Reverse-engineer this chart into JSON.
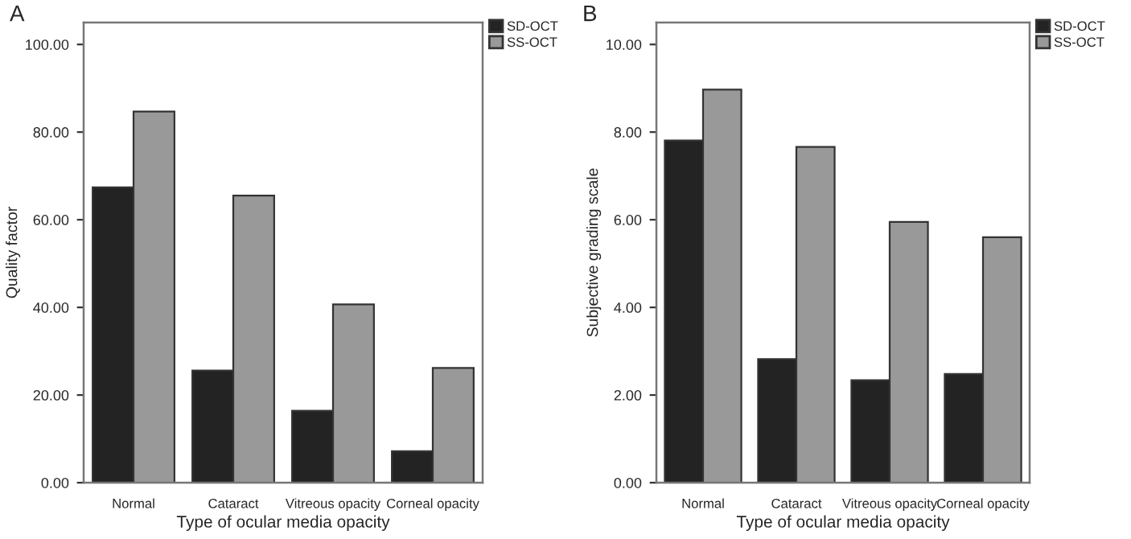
{
  "chart_data": [
    {
      "type": "bar",
      "title": "A",
      "xlabel": "Type of ocular media opacity",
      "ylabel": "Quality factor",
      "categories": [
        "Normal",
        "Cataract",
        "Vitreous opacity",
        "Corneal opacity"
      ],
      "series": [
        {
          "name": "SD-OCT",
          "color": "#232323",
          "values": [
            67.4,
            25.6,
            16.4,
            7.2
          ]
        },
        {
          "name": "SS-OCT",
          "color": "#999999",
          "values": [
            84.7,
            65.5,
            40.7,
            26.2
          ]
        }
      ],
      "ylim": [
        0,
        105
      ],
      "yticks": [
        {
          "value": 0,
          "label": "0.00"
        },
        {
          "value": 20,
          "label": "20.00"
        },
        {
          "value": 40,
          "label": "40.00"
        },
        {
          "value": 60,
          "label": "60.00"
        },
        {
          "value": 80,
          "label": "80.00"
        },
        {
          "value": 100,
          "label": "100.00"
        }
      ],
      "grid": false,
      "legend": "top right"
    },
    {
      "type": "bar",
      "title": "B",
      "xlabel": "Type of ocular media opacity",
      "ylabel": "Subjective grading scale",
      "categories": [
        "Normal",
        "Cataract",
        "Vitreous opacity",
        "Corneal opacity"
      ],
      "series": [
        {
          "name": "SD-OCT",
          "color": "#232323",
          "values": [
            7.81,
            2.82,
            2.34,
            2.48
          ]
        },
        {
          "name": "SS-OCT",
          "color": "#999999",
          "values": [
            8.97,
            7.66,
            5.95,
            5.6
          ]
        }
      ],
      "ylim": [
        0,
        10.5
      ],
      "yticks": [
        {
          "value": 0,
          "label": "0.00"
        },
        {
          "value": 2,
          "label": "2.00"
        },
        {
          "value": 4,
          "label": "4.00"
        },
        {
          "value": 6,
          "label": "6.00"
        },
        {
          "value": 8,
          "label": "8.00"
        },
        {
          "value": 10,
          "label": "10.00"
        }
      ],
      "grid": false,
      "legend": "top right"
    }
  ]
}
